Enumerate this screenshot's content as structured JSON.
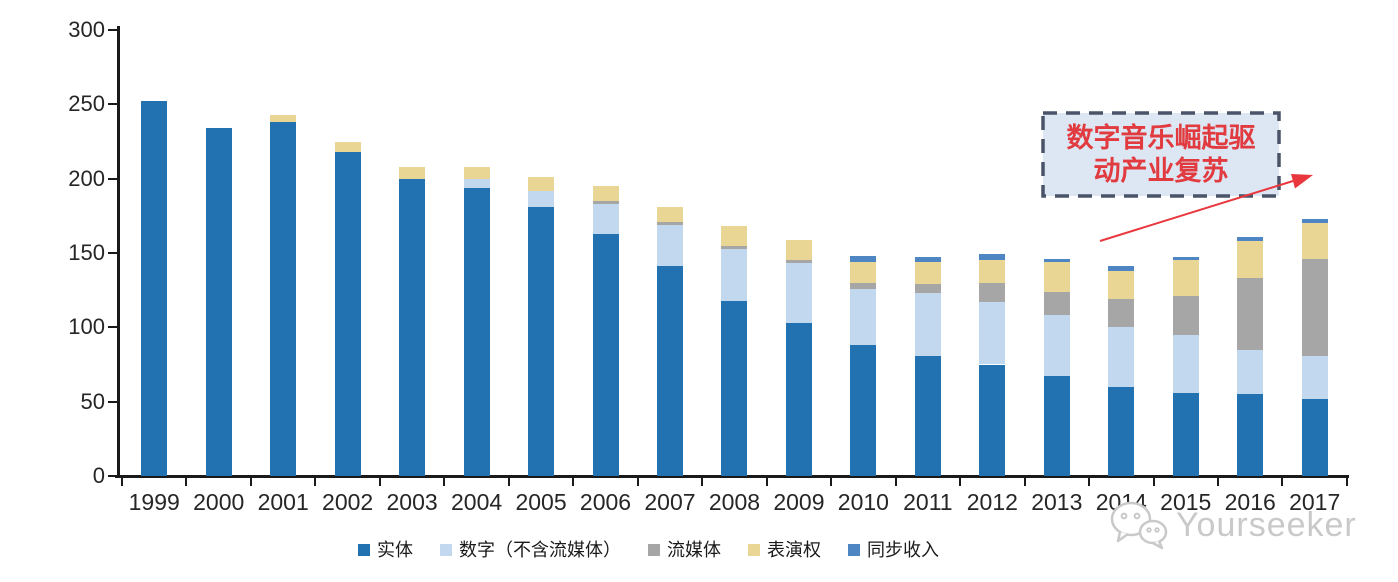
{
  "chart_data": {
    "type": "bar",
    "stacked": true,
    "title": "",
    "xlabel": "",
    "ylabel": "",
    "ylim": [
      0,
      300
    ],
    "yticks": [
      0,
      50,
      100,
      150,
      200,
      250,
      300
    ],
    "grid": false,
    "legend_position": "bottom",
    "categories": [
      "1999",
      "2000",
      "2001",
      "2002",
      "2003",
      "2004",
      "2005",
      "2006",
      "2007",
      "2008",
      "2009",
      "2010",
      "2011",
      "2012",
      "2013",
      "2014",
      "2015",
      "2016",
      "2017"
    ],
    "series": [
      {
        "name": "实体",
        "color": "#2272b1",
        "values": [
          252,
          234,
          238,
          218,
          200,
          194,
          181,
          163,
          141,
          118,
          103,
          88,
          81,
          75,
          67,
          60,
          56,
          55,
          52
        ]
      },
      {
        "name": "数字（不含流媒体）",
        "color": "#c2d8ee",
        "values": [
          0,
          0,
          0,
          0,
          0,
          6,
          11,
          20,
          28,
          35,
          40,
          38,
          42,
          42,
          41,
          40,
          39,
          30,
          29
        ]
      },
      {
        "name": "流媒体",
        "color": "#a6a6a6",
        "values": [
          0,
          0,
          0,
          0,
          0,
          0,
          0,
          2,
          2,
          2,
          2,
          4,
          6,
          13,
          16,
          19,
          26,
          48,
          65
        ]
      },
      {
        "name": "表演权",
        "color": "#e9d694",
        "values": [
          0,
          0,
          5,
          7,
          8,
          8,
          9,
          10,
          10,
          13,
          14,
          14,
          15,
          15,
          20,
          19,
          24,
          25,
          24
        ]
      },
      {
        "name": "同步收入",
        "color": "#4e86c3",
        "values": [
          0,
          0,
          0,
          0,
          0,
          0,
          0,
          0,
          0,
          0,
          0,
          4,
          3,
          4,
          2,
          3,
          2,
          3,
          3
        ]
      }
    ]
  },
  "annotation": {
    "line1": "数字音乐崛起驱",
    "line2": "动产业复苏",
    "text_color": "#e13b40",
    "box_fill": "#dce7f3",
    "box_border_color": "#4a5468",
    "arrow_color": "#e8383d"
  },
  "watermark": {
    "text": "Yourseeker",
    "color": "#c9c9c9"
  }
}
